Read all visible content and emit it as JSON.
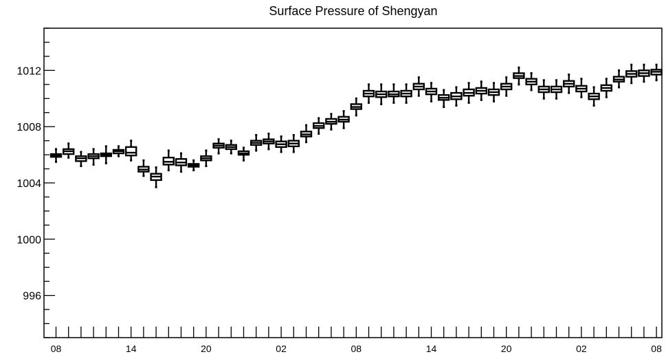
{
  "chart_data": {
    "type": "boxplot",
    "title": "Surface Pressure of Shengyan",
    "xlabel": "",
    "ylabel": "",
    "ylim": [
      993,
      1015
    ],
    "y_ticks": [
      996,
      1000,
      1004,
      1008,
      1012
    ],
    "x_tick_labels": [
      "08",
      "14",
      "20",
      "02",
      "08",
      "14",
      "20",
      "02",
      "08"
    ],
    "x_tick_positions": [
      0,
      6,
      12,
      18,
      24,
      30,
      36,
      42,
      48
    ],
    "grid": false,
    "boxes": [
      {
        "x": 0,
        "q1": 1005.85,
        "median": 1005.95,
        "q3": 1006.05,
        "min": 1005.5,
        "max": 1006.4
      },
      {
        "x": 1,
        "q1": 1006.05,
        "median": 1006.25,
        "q3": 1006.4,
        "min": 1005.8,
        "max": 1006.8
      },
      {
        "x": 2,
        "q1": 1005.55,
        "median": 1005.75,
        "q3": 1005.9,
        "min": 1005.2,
        "max": 1006.2
      },
      {
        "x": 3,
        "q1": 1005.75,
        "median": 1005.9,
        "q3": 1006.05,
        "min": 1005.3,
        "max": 1006.4
      },
      {
        "x": 4,
        "q1": 1005.9,
        "median": 1006.0,
        "q3": 1006.1,
        "min": 1005.4,
        "max": 1006.6
      },
      {
        "x": 5,
        "q1": 1006.1,
        "median": 1006.25,
        "q3": 1006.35,
        "min": 1005.9,
        "max": 1006.6
      },
      {
        "x": 6,
        "q1": 1005.95,
        "median": 1006.15,
        "q3": 1006.55,
        "min": 1005.6,
        "max": 1007.0
      },
      {
        "x": 7,
        "q1": 1004.8,
        "median": 1004.95,
        "q3": 1005.15,
        "min": 1004.5,
        "max": 1005.6
      },
      {
        "x": 8,
        "q1": 1004.2,
        "median": 1004.45,
        "q3": 1004.65,
        "min": 1003.7,
        "max": 1005.1
      },
      {
        "x": 9,
        "q1": 1005.3,
        "median": 1005.5,
        "q3": 1005.8,
        "min": 1004.9,
        "max": 1006.3
      },
      {
        "x": 10,
        "q1": 1005.25,
        "median": 1005.45,
        "q3": 1005.7,
        "min": 1004.8,
        "max": 1006.1
      },
      {
        "x": 11,
        "q1": 1005.15,
        "median": 1005.25,
        "q3": 1005.35,
        "min": 1004.9,
        "max": 1005.6
      },
      {
        "x": 12,
        "q1": 1005.6,
        "median": 1005.75,
        "q3": 1005.9,
        "min": 1005.2,
        "max": 1006.3
      },
      {
        "x": 13,
        "q1": 1006.5,
        "median": 1006.65,
        "q3": 1006.8,
        "min": 1006.1,
        "max": 1007.1
      },
      {
        "x": 14,
        "q1": 1006.4,
        "median": 1006.55,
        "q3": 1006.7,
        "min": 1006.1,
        "max": 1007.0
      },
      {
        "x": 15,
        "q1": 1006.0,
        "median": 1006.1,
        "q3": 1006.25,
        "min": 1005.6,
        "max": 1006.5
      },
      {
        "x": 16,
        "q1": 1006.7,
        "median": 1006.85,
        "q3": 1007.0,
        "min": 1006.3,
        "max": 1007.4
      },
      {
        "x": 17,
        "q1": 1006.8,
        "median": 1006.95,
        "q3": 1007.1,
        "min": 1006.4,
        "max": 1007.5
      },
      {
        "x": 18,
        "q1": 1006.55,
        "median": 1006.75,
        "q3": 1006.95,
        "min": 1006.2,
        "max": 1007.3
      },
      {
        "x": 19,
        "q1": 1006.6,
        "median": 1006.8,
        "q3": 1007.0,
        "min": 1006.2,
        "max": 1007.4
      },
      {
        "x": 20,
        "q1": 1007.3,
        "median": 1007.45,
        "q3": 1007.65,
        "min": 1006.9,
        "max": 1008.1
      },
      {
        "x": 21,
        "q1": 1007.9,
        "median": 1008.05,
        "q3": 1008.25,
        "min": 1007.5,
        "max": 1008.6
      },
      {
        "x": 22,
        "q1": 1008.2,
        "median": 1008.35,
        "q3": 1008.55,
        "min": 1007.8,
        "max": 1008.9
      },
      {
        "x": 23,
        "q1": 1008.35,
        "median": 1008.5,
        "q3": 1008.7,
        "min": 1007.9,
        "max": 1009.1
      },
      {
        "x": 24,
        "q1": 1009.25,
        "median": 1009.4,
        "q3": 1009.6,
        "min": 1008.8,
        "max": 1010.0
      },
      {
        "x": 25,
        "q1": 1010.15,
        "median": 1010.35,
        "q3": 1010.55,
        "min": 1009.7,
        "max": 1011.0
      },
      {
        "x": 26,
        "q1": 1010.1,
        "median": 1010.3,
        "q3": 1010.5,
        "min": 1009.6,
        "max": 1011.0
      },
      {
        "x": 27,
        "q1": 1010.15,
        "median": 1010.3,
        "q3": 1010.5,
        "min": 1009.7,
        "max": 1011.0
      },
      {
        "x": 28,
        "q1": 1010.15,
        "median": 1010.35,
        "q3": 1010.55,
        "min": 1009.7,
        "max": 1011.0
      },
      {
        "x": 29,
        "q1": 1010.65,
        "median": 1010.85,
        "q3": 1011.05,
        "min": 1010.2,
        "max": 1011.5
      },
      {
        "x": 30,
        "q1": 1010.3,
        "median": 1010.5,
        "q3": 1010.7,
        "min": 1009.8,
        "max": 1011.1
      },
      {
        "x": 31,
        "q1": 1009.9,
        "median": 1010.05,
        "q3": 1010.25,
        "min": 1009.4,
        "max": 1010.6
      },
      {
        "x": 32,
        "q1": 1009.95,
        "median": 1010.15,
        "q3": 1010.4,
        "min": 1009.5,
        "max": 1010.8
      },
      {
        "x": 33,
        "q1": 1010.2,
        "median": 1010.4,
        "q3": 1010.65,
        "min": 1009.7,
        "max": 1011.1
      },
      {
        "x": 34,
        "q1": 1010.35,
        "median": 1010.55,
        "q3": 1010.75,
        "min": 1009.9,
        "max": 1011.2
      },
      {
        "x": 35,
        "q1": 1010.25,
        "median": 1010.45,
        "q3": 1010.65,
        "min": 1009.8,
        "max": 1011.1
      },
      {
        "x": 36,
        "q1": 1010.65,
        "median": 1010.85,
        "q3": 1011.05,
        "min": 1010.2,
        "max": 1011.5
      },
      {
        "x": 37,
        "q1": 1011.45,
        "median": 1011.6,
        "q3": 1011.8,
        "min": 1011.0,
        "max": 1012.2
      },
      {
        "x": 38,
        "q1": 1011.0,
        "median": 1011.2,
        "q3": 1011.4,
        "min": 1010.6,
        "max": 1011.8
      },
      {
        "x": 39,
        "q1": 1010.45,
        "median": 1010.65,
        "q3": 1010.85,
        "min": 1010.0,
        "max": 1011.3
      },
      {
        "x": 40,
        "q1": 1010.45,
        "median": 1010.65,
        "q3": 1010.85,
        "min": 1010.0,
        "max": 1011.3
      },
      {
        "x": 41,
        "q1": 1010.85,
        "median": 1011.05,
        "q3": 1011.25,
        "min": 1010.4,
        "max": 1011.7
      },
      {
        "x": 42,
        "q1": 1010.5,
        "median": 1010.7,
        "q3": 1010.9,
        "min": 1010.1,
        "max": 1011.4
      },
      {
        "x": 43,
        "q1": 1009.95,
        "median": 1010.15,
        "q3": 1010.35,
        "min": 1009.5,
        "max": 1010.8
      },
      {
        "x": 44,
        "q1": 1010.55,
        "median": 1010.75,
        "q3": 1010.95,
        "min": 1010.1,
        "max": 1011.4
      },
      {
        "x": 45,
        "q1": 1011.2,
        "median": 1011.35,
        "q3": 1011.55,
        "min": 1010.8,
        "max": 1012.0
      },
      {
        "x": 46,
        "q1": 1011.55,
        "median": 1011.75,
        "q3": 1011.95,
        "min": 1011.1,
        "max": 1012.4
      },
      {
        "x": 47,
        "q1": 1011.6,
        "median": 1011.8,
        "q3": 1012.0,
        "min": 1011.2,
        "max": 1012.4
      },
      {
        "x": 48,
        "q1": 1011.7,
        "median": 1011.9,
        "q3": 1012.05,
        "min": 1011.3,
        "max": 1012.4
      }
    ]
  }
}
